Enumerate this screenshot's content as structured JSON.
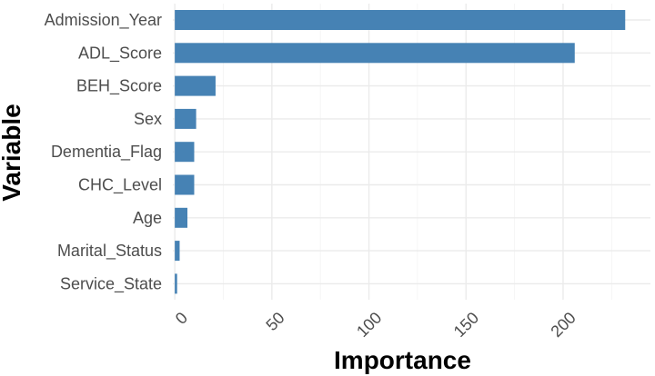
{
  "chart_data": {
    "type": "bar",
    "orientation": "horizontal",
    "categories": [
      "Admission_Year",
      "ADL_Score",
      "BEH_Score",
      "Sex",
      "Dementia_Flag",
      "CHC_Level",
      "Age",
      "Marital_Status",
      "Service_State"
    ],
    "values": [
      232,
      206,
      21,
      11,
      10,
      10,
      6.5,
      2.5,
      1.2
    ],
    "xlabel": "Importance",
    "ylabel": "Variable",
    "xlim": [
      -1,
      245
    ],
    "x_ticks": [
      0,
      50,
      100,
      150,
      200
    ],
    "grid": true,
    "bar_color": "#4682b4"
  }
}
